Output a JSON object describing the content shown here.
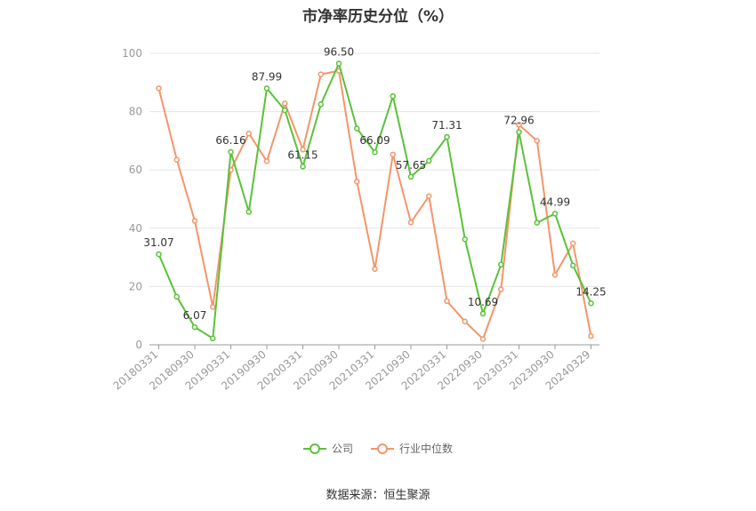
{
  "chart_data": {
    "type": "line",
    "title": "市净率历史分位（%）",
    "ylim": [
      0,
      100
    ],
    "yticks": [
      0,
      20,
      40,
      60,
      80,
      100
    ],
    "x_tick_labels": [
      "20180331",
      "20180930",
      "20190331",
      "20190930",
      "20200331",
      "20200930",
      "20210331",
      "20210930",
      "20220331",
      "20220930",
      "20230331",
      "20230930",
      "20240329"
    ],
    "series": [
      {
        "name": "公司",
        "color": "#5ac23a",
        "values": [
          31.07,
          16.5,
          6.07,
          2.2,
          66.16,
          45.6,
          87.99,
          80.5,
          61.15,
          82.5,
          96.5,
          74.2,
          66.09,
          85.3,
          57.65,
          63.1,
          71.31,
          36.2,
          10.69,
          27.5,
          72.96,
          41.9,
          44.99,
          27.2,
          14.25
        ],
        "labels": {
          "0": "31.07",
          "2": "6.07",
          "4": "66.16",
          "6": "87.99",
          "8": "61.15",
          "10": "96.50",
          "12": "66.09",
          "14": "57.65",
          "16": "71.31",
          "18": "10.69",
          "20": "72.96",
          "22": "44.99",
          "24": "14.25"
        }
      },
      {
        "name": "行业中位数",
        "color": "#f4956a",
        "values": [
          88.0,
          63.5,
          42.5,
          13.0,
          60.0,
          72.5,
          63.0,
          82.8,
          67.0,
          92.8,
          94.0,
          56.0,
          26.0,
          65.3,
          42.0,
          51.0,
          15.0,
          8.0,
          2.0,
          19.0,
          75.5,
          70.0,
          24.0,
          34.8,
          3.0
        ]
      }
    ],
    "legend_position": "bottom",
    "grid": true
  },
  "source_note": "数据来源：恒生聚源"
}
